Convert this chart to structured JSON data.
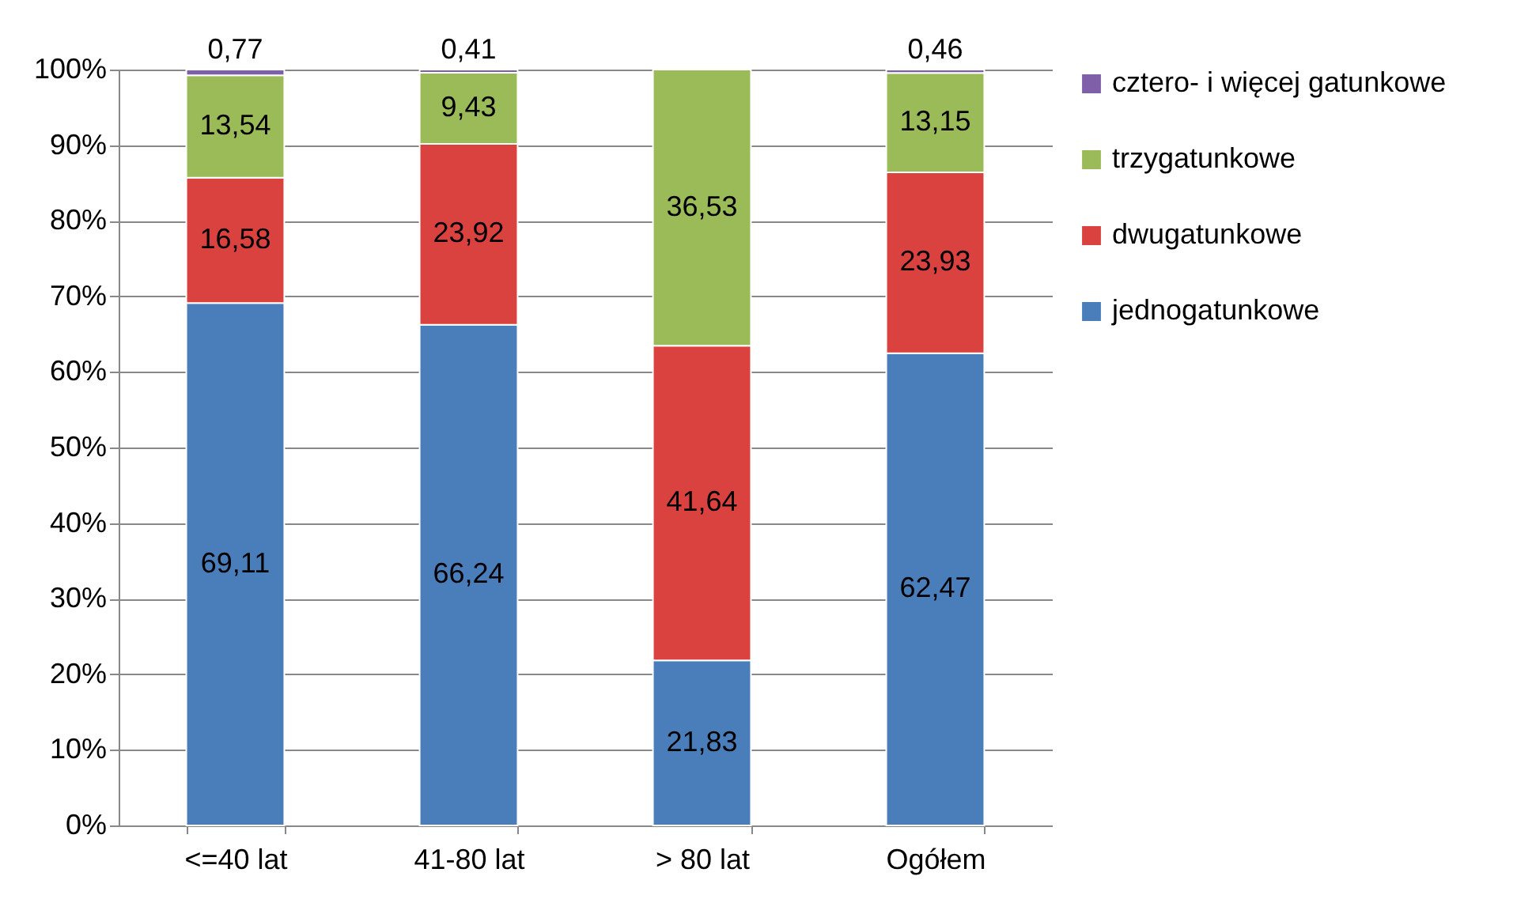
{
  "chart_data": {
    "type": "bar",
    "stacked": true,
    "categories": [
      "<=40 lat",
      "41-80 lat",
      "> 80 lat",
      "Ogółem"
    ],
    "series": [
      {
        "name": "jednogatunkowe",
        "color": "#4a7ebb",
        "values": [
          69.11,
          66.24,
          21.83,
          62.47
        ],
        "value_labels": [
          "69,11",
          "66,24",
          "21,83",
          "62,47"
        ]
      },
      {
        "name": "dwugatunkowe",
        "color": "#d9423f",
        "values": [
          16.58,
          23.92,
          41.64,
          23.93
        ],
        "value_labels": [
          "16,58",
          "23,92",
          "41,64",
          "23,93"
        ]
      },
      {
        "name": "trzygatunkowe",
        "color": "#9bbb59",
        "values": [
          13.54,
          9.43,
          36.53,
          13.15
        ],
        "value_labels": [
          "13,54",
          "9,43",
          "36,53",
          "13,15"
        ]
      },
      {
        "name": "cztero- i więcej gatunkowe",
        "color": "#7f5fa8",
        "values": [
          0.77,
          0.41,
          null,
          0.46
        ],
        "value_labels": [
          "0,77",
          "0,41",
          null,
          "0,46"
        ]
      }
    ],
    "ylim": [
      0,
      100
    ],
    "yticks": [
      {
        "value": 0,
        "label": "0%"
      },
      {
        "value": 10,
        "label": "10%"
      },
      {
        "value": 20,
        "label": "20%"
      },
      {
        "value": 30,
        "label": "30%"
      },
      {
        "value": 40,
        "label": "40%"
      },
      {
        "value": 50,
        "label": "50%"
      },
      {
        "value": 60,
        "label": "60%"
      },
      {
        "value": 70,
        "label": "70%"
      },
      {
        "value": 80,
        "label": "80%"
      },
      {
        "value": 90,
        "label": "90%"
      },
      {
        "value": 100,
        "label": "100%"
      }
    ],
    "grid": "y",
    "legend": "right"
  }
}
